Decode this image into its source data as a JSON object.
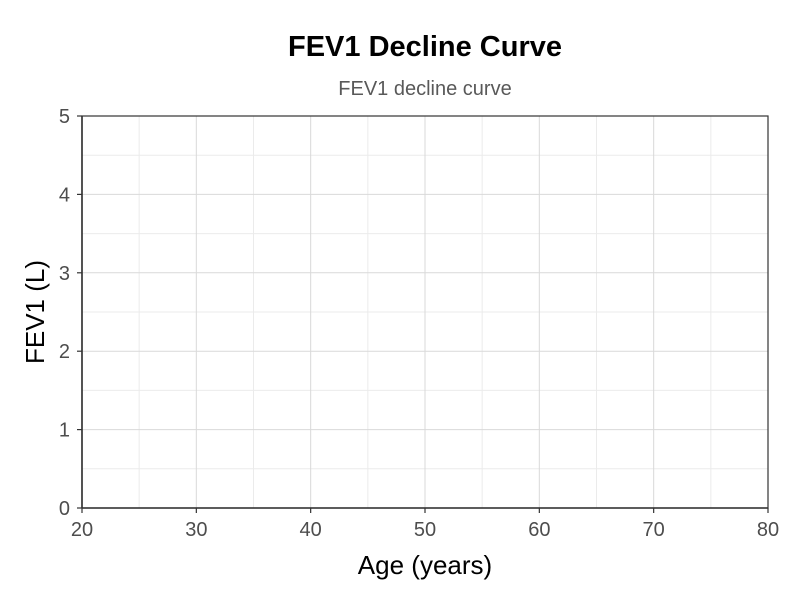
{
  "chart_data": {
    "type": "line",
    "title": "FEV1 Decline Curve",
    "subtitle": "FEV1 decline curve",
    "xlabel": "Age (years)",
    "ylabel": "FEV1 (L)",
    "xlim": [
      20,
      80
    ],
    "ylim": [
      0,
      5
    ],
    "x_ticks": [
      20,
      30,
      40,
      50,
      60,
      70,
      80
    ],
    "y_ticks": [
      0,
      1,
      2,
      3,
      4,
      5
    ],
    "x_tick_labels": [
      "20",
      "30",
      "40",
      "50",
      "60",
      "70",
      "80"
    ],
    "y_tick_labels": [
      "0",
      "1",
      "2",
      "3",
      "4",
      "5"
    ],
    "grid": true,
    "series": []
  },
  "colors": {
    "grid_major": "#d9d9d9",
    "grid_minor": "#ebebeb",
    "axis": "#333333"
  }
}
